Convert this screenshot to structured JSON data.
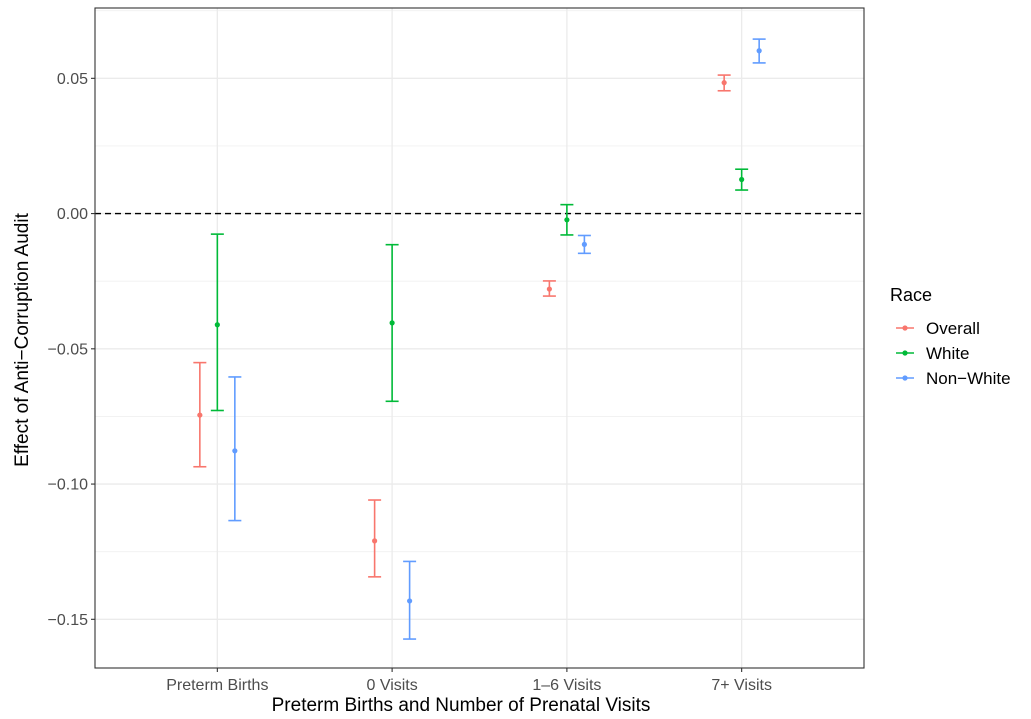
{
  "chart_data": {
    "type": "scatter",
    "subtype": "point-errorbar",
    "title": "",
    "xlabel": "Preterm Births and Number of Prenatal Visits",
    "ylabel": "Effect of Anti−Corruption Audit",
    "categories": [
      "Preterm Births",
      "0 Visits",
      "1–6 Visits",
      "7+ Visits"
    ],
    "yticks": [
      0.05,
      0.0,
      -0.05,
      -0.1,
      -0.15
    ],
    "ytick_labels": [
      "0.05",
      "0.00",
      "−0.05",
      "−0.10",
      "−0.15"
    ],
    "ylim": [
      -0.168,
      0.076
    ],
    "reference_line": {
      "y": 0.0,
      "style": "dashed",
      "color": "#000000"
    },
    "grid": true,
    "legend": {
      "title": "Race",
      "position": "right"
    },
    "series": [
      {
        "name": "Overall",
        "color": "#F8766D",
        "values": [
          -0.0745,
          -0.121,
          -0.0279,
          0.0484
        ],
        "lower": [
          -0.0936,
          -0.1343,
          -0.0305,
          0.0454
        ],
        "upper": [
          -0.0551,
          -0.1059,
          -0.0249,
          0.0512
        ]
      },
      {
        "name": "White",
        "color": "#00BA38",
        "values": [
          -0.0411,
          -0.0404,
          -0.0023,
          0.0126
        ],
        "lower": [
          -0.0728,
          -0.0694,
          -0.0079,
          0.0087
        ],
        "upper": [
          -0.0076,
          -0.0115,
          0.0033,
          0.0164
        ]
      },
      {
        "name": "Non−White",
        "color": "#619CFF",
        "values": [
          -0.0877,
          -0.1432,
          -0.0114,
          0.0602
        ],
        "lower": [
          -0.1135,
          -0.1573,
          -0.0147,
          0.0557
        ],
        "upper": [
          -0.0604,
          -0.1286,
          -0.0081,
          0.0645
        ]
      }
    ]
  }
}
